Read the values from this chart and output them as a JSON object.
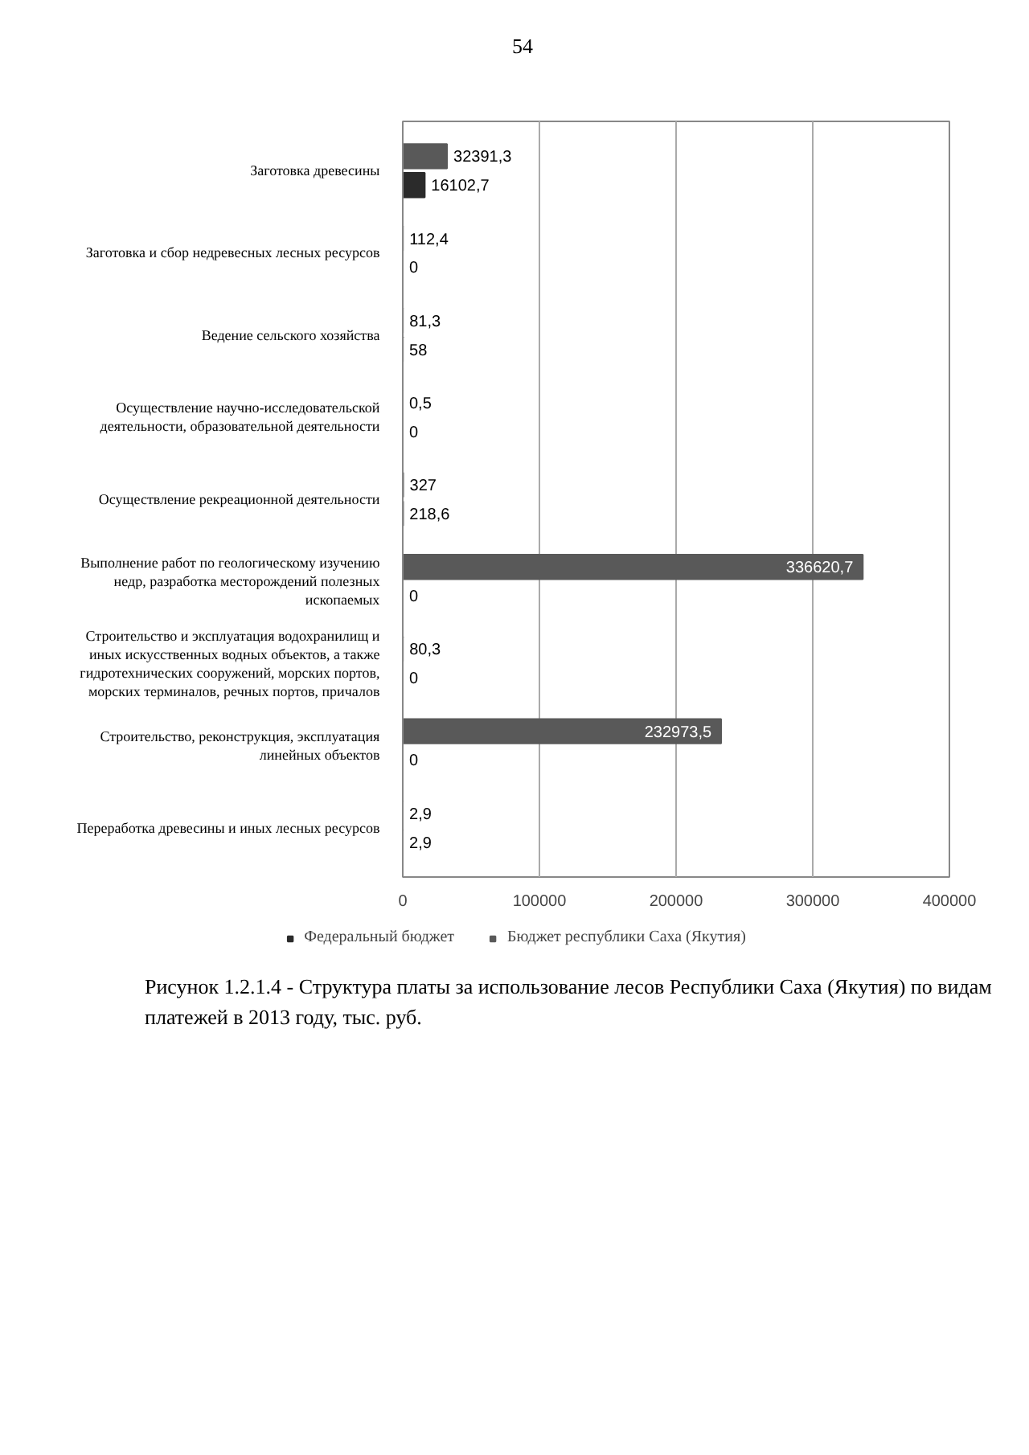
{
  "chart_data": {
    "type": "bar",
    "orientation": "horizontal",
    "categories": [
      "Заготовка древесины",
      "Заготовка и сбор недревесных лесных ресурсов",
      "Ведение сельского хозяйства",
      "Осуществление научно-исследовательской деятельности, образовательной деятельности",
      "Осуществление рекреационной деятельности",
      "Выполнение работ по геологическому изучению недр, разработка месторождений полезных ископаемых",
      "Строительство и эксплуатация водохранилищ и иных искусственных водных объектов, а также гидротехнических сооружений, морских портов, морских терминалов, речных портов, причалов",
      "Строительство, реконструкция, эксплуатация линейных объектов",
      "Переработка древесины и иных лесных ресурсов"
    ],
    "series": [
      {
        "name": "Федеральный бюджет",
        "color": "#2b2b2b",
        "values": [
          16102.7,
          0,
          58,
          0,
          218.6,
          0,
          0,
          0,
          2.9
        ],
        "value_labels": [
          "16102,7",
          "0",
          "58",
          "0",
          "218,6",
          "0",
          "0",
          "0",
          "2,9"
        ]
      },
      {
        "name": "Бюджет республики Саха (Якутия)",
        "color": "#595959",
        "values": [
          32391.3,
          112.4,
          81.3,
          0.5,
          327,
          336620.7,
          80.3,
          232973.5,
          2.9
        ],
        "value_labels": [
          "32391,3",
          "112,4",
          "81,3",
          "0,5",
          "327",
          "336620,7",
          "80,3",
          "232973,5",
          "2,9"
        ]
      }
    ],
    "xlim": [
      0,
      400000
    ],
    "xticks": [
      0,
      100000,
      200000,
      300000,
      400000
    ],
    "grid": "x",
    "legend": "bottom",
    "annotations": [
      "54",
      "Рисунок 1.2.1.4 - Структура платы за использование лесов Республики Саха (Якутия) по видам платежей в 2013 году, тыс. руб."
    ]
  }
}
